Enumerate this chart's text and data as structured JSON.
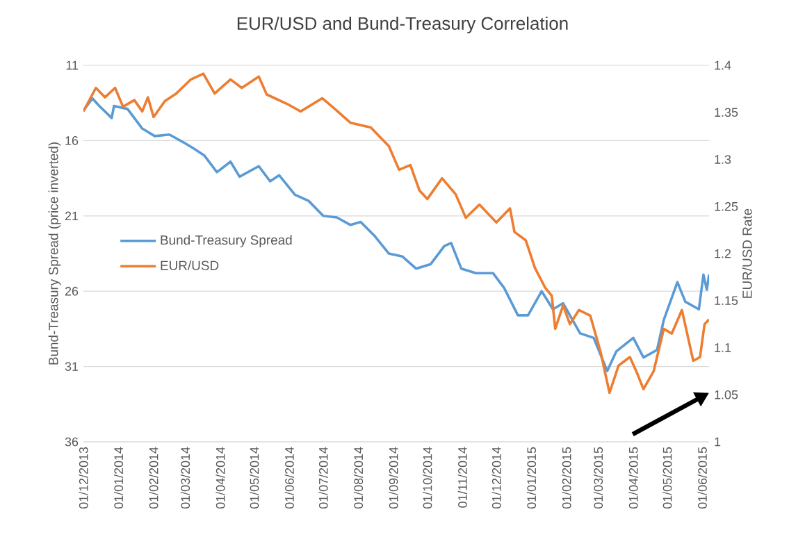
{
  "chart_data": {
    "type": "line",
    "title": "EUR/USD and Bund-Treasury Correlation",
    "ylabel": "Bund-Treasury Spread (price inverted)",
    "y2label": "EUR/USD  Rate",
    "xlim": [
      "2013-12-01",
      "2015-06-07"
    ],
    "xticks": [
      {
        "value": "2013-12-01",
        "label": "01/12/2013"
      },
      {
        "value": "2014-01-01",
        "label": "01/01/2014"
      },
      {
        "value": "2014-02-01",
        "label": "01/02/2014"
      },
      {
        "value": "2014-03-01",
        "label": "01/03/2014"
      },
      {
        "value": "2014-04-01",
        "label": "01/04/2014"
      },
      {
        "value": "2014-05-01",
        "label": "01/05/2014"
      },
      {
        "value": "2014-06-01",
        "label": "01/06/2014"
      },
      {
        "value": "2014-07-01",
        "label": "01/07/2014"
      },
      {
        "value": "2014-08-01",
        "label": "01/08/2014"
      },
      {
        "value": "2014-09-01",
        "label": "01/09/2014"
      },
      {
        "value": "2014-10-01",
        "label": "01/10/2014"
      },
      {
        "value": "2014-11-01",
        "label": "01/11/2014"
      },
      {
        "value": "2014-12-01",
        "label": "01/12/2014"
      },
      {
        "value": "2015-01-01",
        "label": "01/01/2015"
      },
      {
        "value": "2015-02-01",
        "label": "01/02/2015"
      },
      {
        "value": "2015-03-01",
        "label": "01/03/2015"
      },
      {
        "value": "2015-04-01",
        "label": "01/04/2015"
      },
      {
        "value": "2015-05-01",
        "label": "01/05/2015"
      },
      {
        "value": "2015-06-01",
        "label": "01/06/2015"
      }
    ],
    "ylim": [
      36,
      11
    ],
    "yticks": [
      11,
      16,
      21,
      26,
      31,
      36
    ],
    "y2lim": [
      1,
      1.4
    ],
    "y2ticks": [
      1,
      1.05,
      1.1,
      1.15,
      1.2,
      1.25,
      1.3,
      1.35,
      1.4
    ],
    "grid": "y",
    "legend": "left",
    "marker": "none",
    "line_style": "solid",
    "series": [
      {
        "name": "Bund-Treasury Spread",
        "color": "#5b9bd5",
        "x": [
          "2013-12-01",
          "2013-12-09",
          "2013-12-15",
          "2013-12-26",
          "2013-12-28",
          "2014-01-09",
          "2014-01-22",
          "2014-02-02",
          "2014-02-15",
          "2014-02-27",
          "2014-03-08",
          "2014-03-18",
          "2014-03-29",
          "2014-04-10",
          "2014-04-18",
          "2014-05-05",
          "2014-05-15",
          "2014-05-23",
          "2014-06-06",
          "2014-06-18",
          "2014-07-01",
          "2014-07-13",
          "2014-07-25",
          "2014-08-03",
          "2014-08-15",
          "2014-08-28",
          "2014-09-09",
          "2014-09-21",
          "2014-10-04",
          "2014-10-16",
          "2014-10-22",
          "2014-10-31",
          "2014-11-13",
          "2014-11-28",
          "2014-12-08",
          "2014-12-20",
          "2014-12-29",
          "2015-01-10",
          "2015-01-20",
          "2015-01-29",
          "2015-02-13",
          "2015-02-25",
          "2015-03-09",
          "2015-03-17",
          "2015-04-01",
          "2015-04-10",
          "2015-04-22",
          "2015-04-28",
          "2015-05-10",
          "2015-05-17",
          "2015-05-29",
          "2015-06-02",
          "2015-06-05",
          "2015-06-07"
        ],
        "values": [
          14.0,
          13.2,
          13.7,
          14.5,
          13.7,
          13.9,
          15.2,
          15.7,
          15.6,
          16.1,
          16.5,
          17.0,
          18.1,
          17.4,
          18.4,
          17.7,
          18.7,
          18.3,
          19.6,
          20.0,
          21.0,
          21.1,
          21.6,
          21.4,
          22.3,
          23.5,
          23.7,
          24.5,
          24.2,
          23.0,
          22.8,
          24.5,
          24.8,
          24.8,
          25.8,
          27.6,
          27.6,
          26.0,
          27.2,
          26.8,
          28.8,
          29.1,
          31.3,
          30.0,
          29.1,
          30.4,
          29.9,
          27.9,
          25.4,
          26.7,
          27.2,
          24.9,
          25.9,
          24.9
        ]
      },
      {
        "name": "EUR/USD",
        "color": "#ed7d31",
        "axis": "y2",
        "x": [
          "2013-12-01",
          "2013-12-12",
          "2013-12-20",
          "2013-12-29",
          "2014-01-05",
          "2014-01-15",
          "2014-01-22",
          "2014-01-27",
          "2014-02-01",
          "2014-02-11",
          "2014-02-21",
          "2014-03-06",
          "2014-03-17",
          "2014-03-27",
          "2014-04-10",
          "2014-04-20",
          "2014-05-05",
          "2014-05-12",
          "2014-05-30",
          "2014-06-11",
          "2014-06-30",
          "2014-07-09",
          "2014-07-25",
          "2014-08-12",
          "2014-08-28",
          "2014-09-06",
          "2014-09-16",
          "2014-09-24",
          "2014-10-01",
          "2014-10-14",
          "2014-10-26",
          "2014-11-04",
          "2014-11-16",
          "2014-12-01",
          "2014-12-13",
          "2014-12-17",
          "2014-12-27",
          "2015-01-04",
          "2015-01-13",
          "2015-01-19",
          "2015-01-22",
          "2015-01-29",
          "2015-02-04",
          "2015-02-12",
          "2015-02-22",
          "2015-03-03",
          "2015-03-11",
          "2015-03-19",
          "2015-03-29",
          "2015-04-04",
          "2015-04-10",
          "2015-04-19",
          "2015-04-28",
          "2015-05-05",
          "2015-05-14",
          "2015-05-24",
          "2015-05-30",
          "2015-06-03",
          "2015-06-07"
        ],
        "values": [
          1.351,
          1.376,
          1.366,
          1.376,
          1.356,
          1.363,
          1.351,
          1.366,
          1.345,
          1.362,
          1.37,
          1.385,
          1.391,
          1.37,
          1.385,
          1.376,
          1.388,
          1.369,
          1.359,
          1.351,
          1.365,
          1.356,
          1.339,
          1.334,
          1.314,
          1.289,
          1.294,
          1.267,
          1.258,
          1.28,
          1.263,
          1.238,
          1.252,
          1.233,
          1.248,
          1.223,
          1.214,
          1.185,
          1.164,
          1.155,
          1.12,
          1.145,
          1.125,
          1.14,
          1.134,
          1.096,
          1.052,
          1.081,
          1.09,
          1.074,
          1.056,
          1.075,
          1.12,
          1.115,
          1.14,
          1.086,
          1.09,
          1.125,
          1.13
        ]
      }
    ]
  }
}
